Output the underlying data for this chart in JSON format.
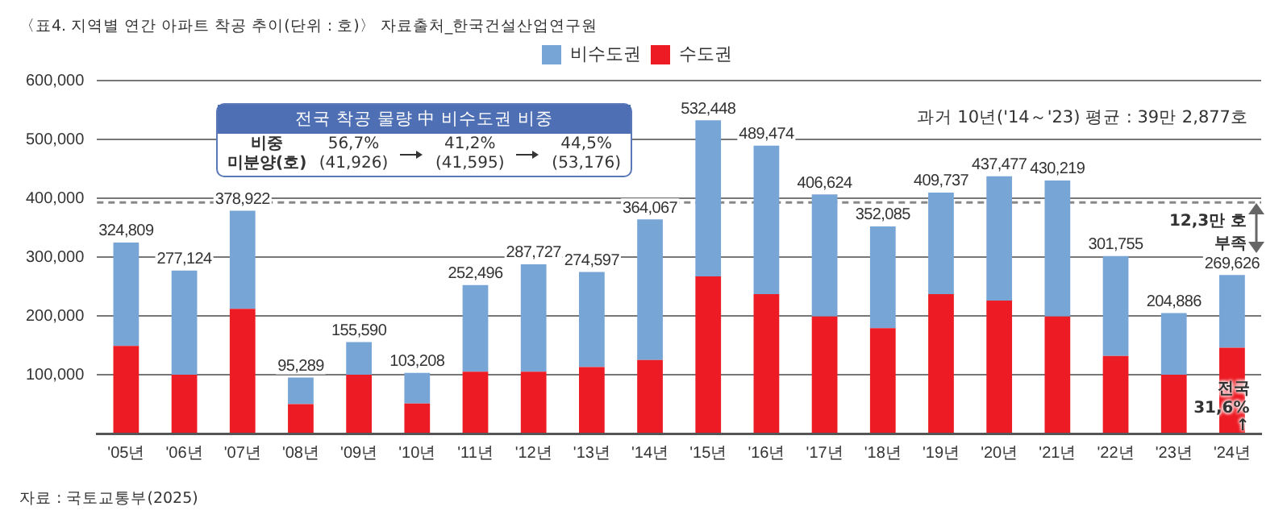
{
  "chart_data": {
    "type": "bar",
    "stacked": true,
    "title": "〈표4. 지역별 연간 아파트 착공 추이(단위 : 호)〉 자료출처_한국건설산업연구원",
    "categories": [
      "'05년",
      "'06년",
      "'07년",
      "'08년",
      "'09년",
      "'10년",
      "'11년",
      "'12년",
      "'13년",
      "'14년",
      "'15년",
      "'16년",
      "'17년",
      "'18년",
      "'19년",
      "'20년",
      "'21년",
      "'22년",
      "'23년",
      "'24년"
    ],
    "series": [
      {
        "name": "수도권",
        "color": "#ed1c24",
        "values": [
          149000,
          100000,
          212000,
          50000,
          100000,
          51000,
          105000,
          105000,
          113000,
          125000,
          267000,
          237000,
          199000,
          179000,
          237000,
          226000,
          199000,
          132000,
          100000,
          146000
        ]
      },
      {
        "name": "비수도권",
        "color": "#77a6d6",
        "values": [
          175809,
          177124,
          166922,
          45289,
          55590,
          52208,
          147496,
          182727,
          161597,
          239067,
          265448,
          252474,
          207624,
          173085,
          172737,
          211477,
          231219,
          169755,
          104886,
          123626
        ]
      }
    ],
    "totals": [
      "324,809",
      "277,124",
      "378,922",
      "95,289",
      "155,590",
      "103,208",
      "252,496",
      "287,727",
      "274,597",
      "364,067",
      "532,448",
      "489,474",
      "406,624",
      "352,085",
      "409,737",
      "437,477",
      "430,219",
      "301,755",
      "204,886",
      "269,626"
    ],
    "ylim": [
      0,
      600000
    ],
    "yticks": [
      {
        "value": 0,
        "label": null
      },
      {
        "value": 100000,
        "label": "100,000"
      },
      {
        "value": 200000,
        "label": "200,000"
      },
      {
        "value": 300000,
        "label": "300,000"
      },
      {
        "value": 400000,
        "label": "400,000"
      },
      {
        "value": 500000,
        "label": "500,000"
      },
      {
        "value": 600000,
        "label": "600,000"
      }
    ],
    "grid": "y",
    "legend": "top",
    "ref_lines": [
      {
        "axis": "y",
        "value": 392877,
        "color": "#888888",
        "line_style": "dashed"
      }
    ],
    "annotations": [
      "자료 : 국토교통부(2025)",
      "전국 착공 물량 中 비수도권 비중",
      "비중",
      "미분양(호)",
      "56,7%",
      "(41,926)",
      "41,2%",
      "(41,595)",
      "44,5%",
      "(53,176)",
      "과거 10년('14～'23) 평균 : 39만 2,877호",
      "12,3만 호 부족",
      "전국 31,6% ↑"
    ]
  }
}
